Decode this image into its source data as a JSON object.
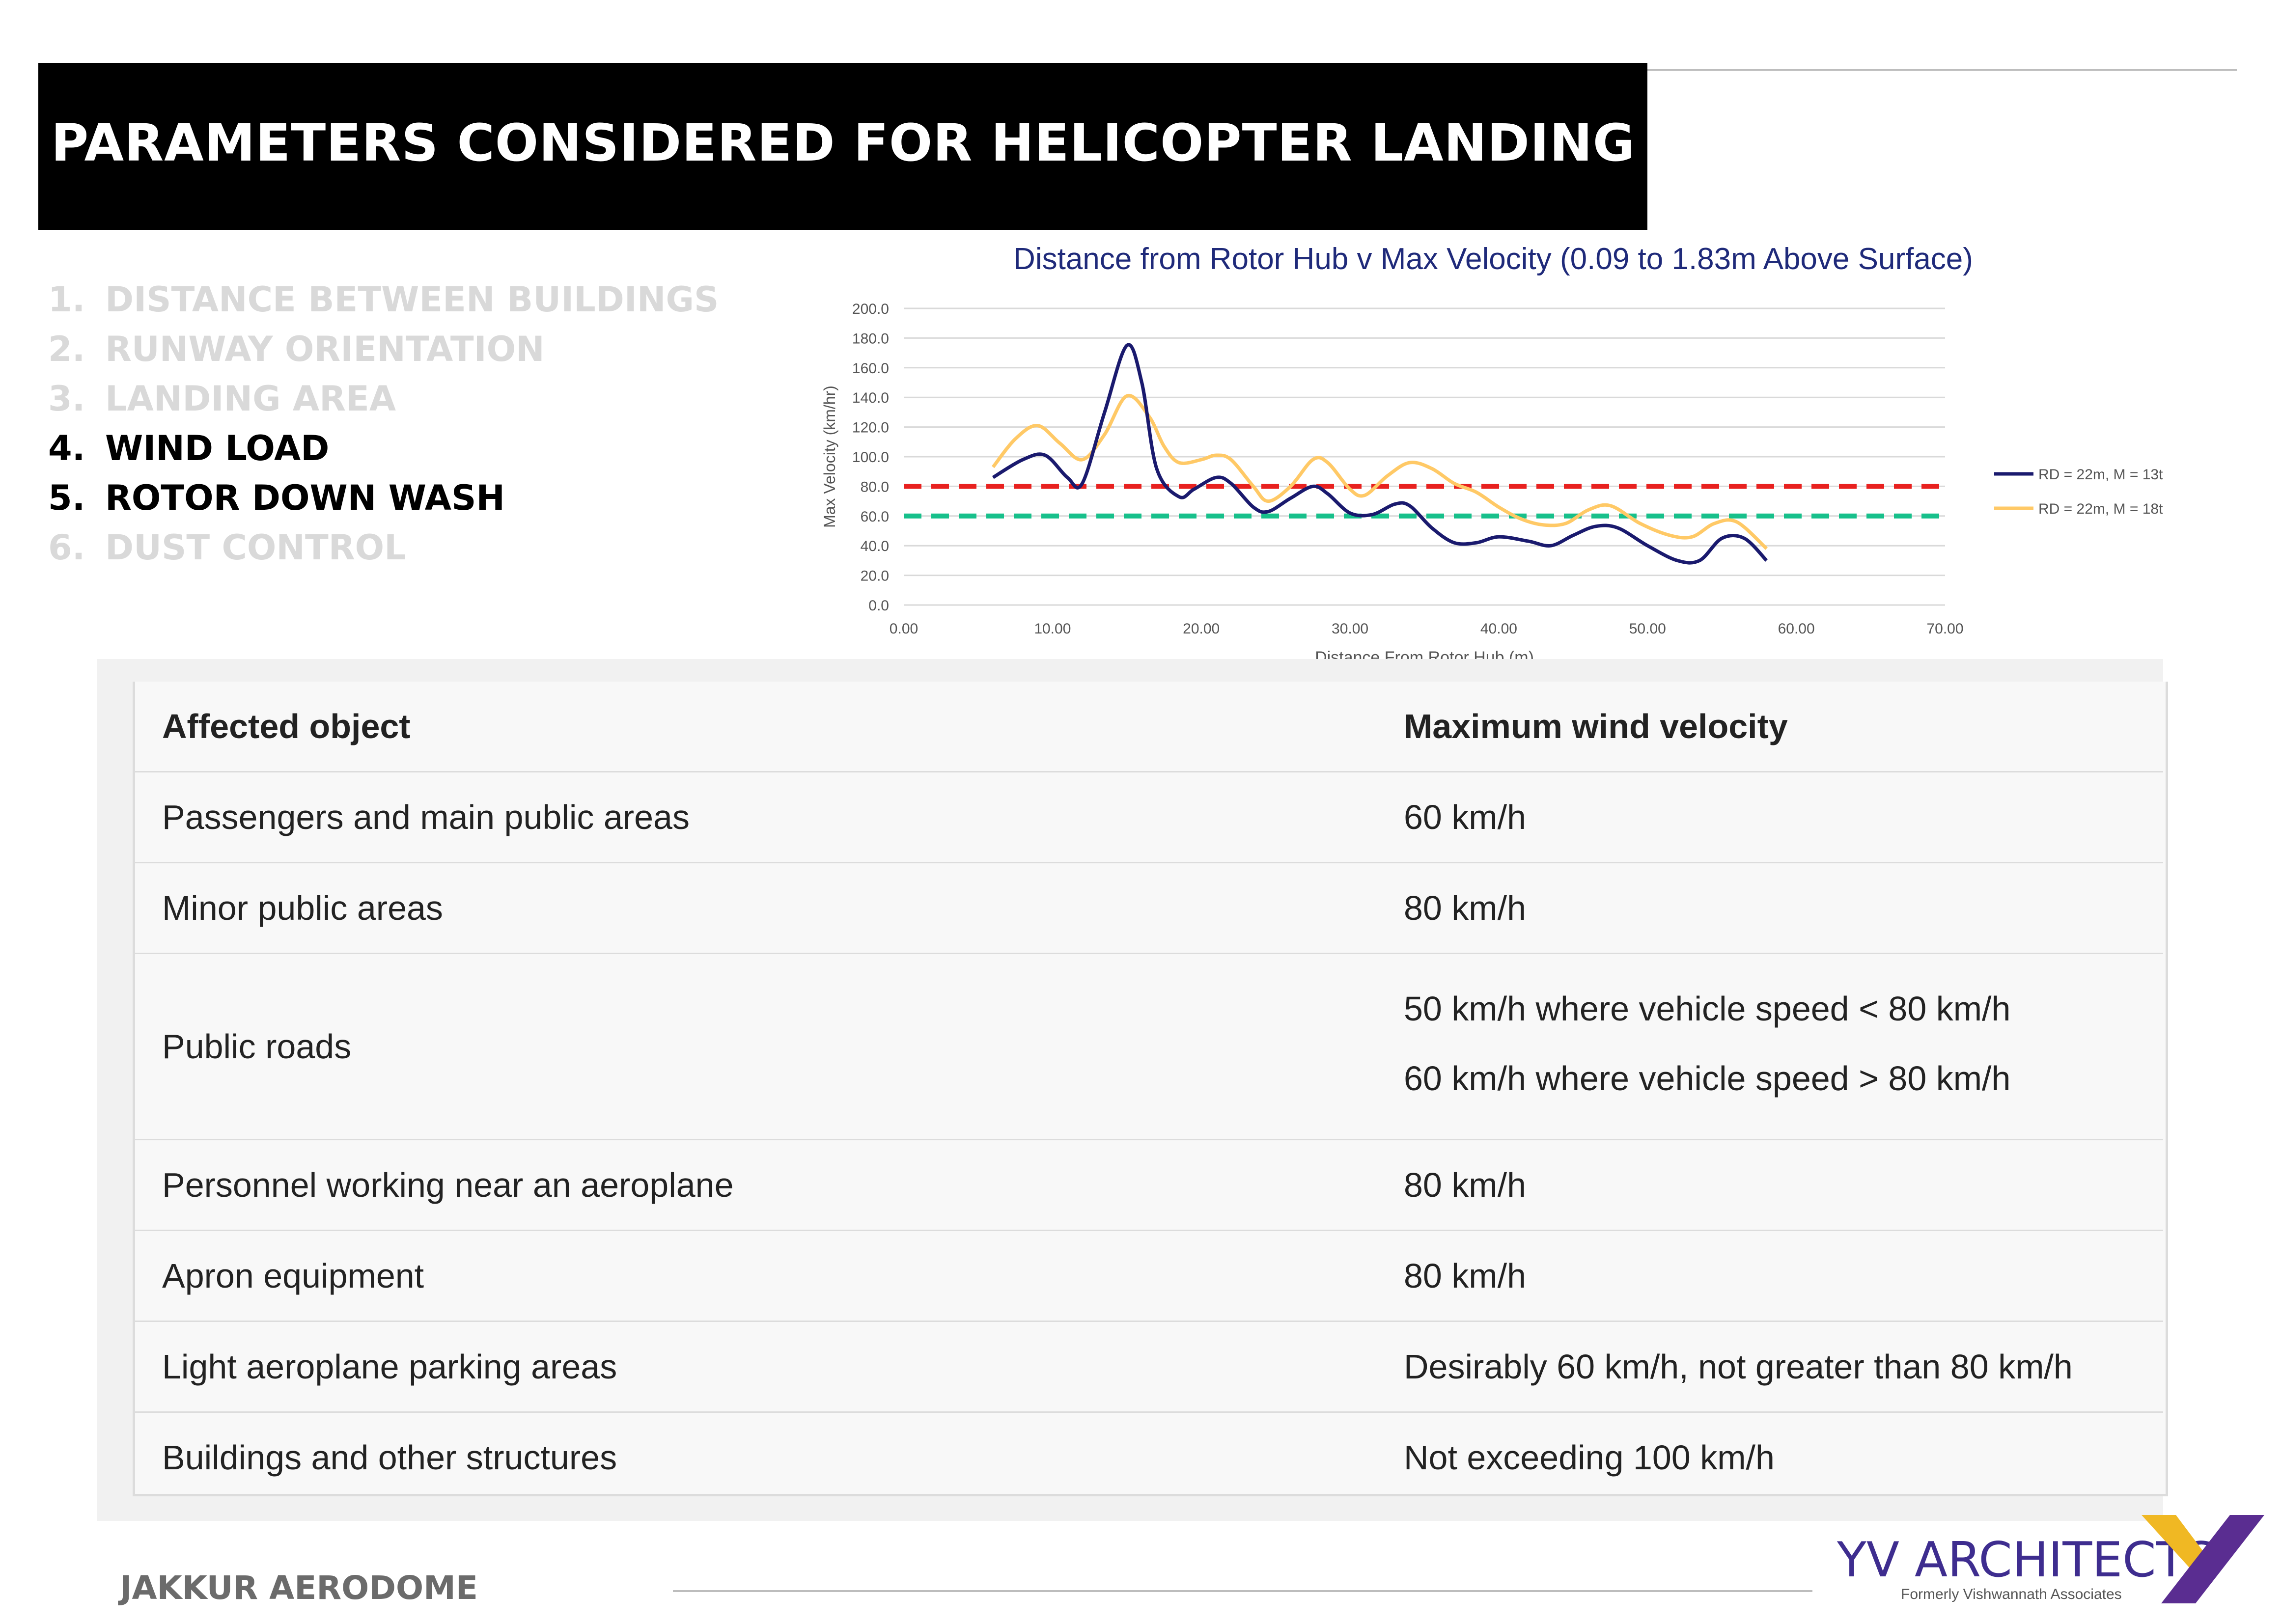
{
  "page": {
    "title": "PARAMETERS CONSIDERED FOR HELICOPTER LANDING",
    "footer": "JAKKUR AERODOME"
  },
  "menu": {
    "items": [
      {
        "num": "1.",
        "label": "DISTANCE BETWEEN BUILDINGS",
        "active": false
      },
      {
        "num": "2.",
        "label": "RUNWAY ORIENTATION",
        "active": false
      },
      {
        "num": "3.",
        "label": "LANDING AREA",
        "active": false
      },
      {
        "num": "4.",
        "label": "WIND LOAD",
        "active": true
      },
      {
        "num": "5.",
        "label": "ROTOR DOWN WASH",
        "active": true
      },
      {
        "num": "6.",
        "label": "DUST CONTROL",
        "active": false
      }
    ]
  },
  "chart_data": {
    "type": "line",
    "title": "Distance from Rotor Hub v Max Velocity (0.09 to 1.83m Above Surface)",
    "xlabel": "Distance From Rotor Hub (m)",
    "ylabel": "Max Velocity (km/hr)",
    "xlim": [
      0,
      70
    ],
    "ylim": [
      0,
      200
    ],
    "x_ticks": [
      "0.00",
      "10.00",
      "20.00",
      "30.00",
      "40.00",
      "50.00",
      "60.00",
      "70.00"
    ],
    "y_ticks": [
      "0.0",
      "20.0",
      "40.0",
      "60.0",
      "80.0",
      "100.0",
      "120.0",
      "140.0",
      "160.0",
      "180.0",
      "200.0"
    ],
    "grid": true,
    "legend": "right",
    "series": [
      {
        "name": "RD = 22m, M = 13t",
        "color": "#1a1a6e",
        "x": [
          6,
          8,
          9.5,
          11,
          12,
          13.5,
          15,
          16,
          17,
          18.5,
          19.5,
          21,
          22,
          23.5,
          24.5,
          26,
          27.5,
          28.5,
          30,
          31.5,
          33,
          34,
          35.5,
          37,
          38.5,
          40,
          42,
          43.5,
          45,
          46.5,
          48,
          50,
          52,
          53.5,
          55,
          56.5,
          58
        ],
        "y": [
          86,
          98,
          101,
          86,
          82,
          130,
          175,
          150,
          92,
          73,
          78,
          86,
          82,
          66,
          63,
          72,
          80,
          75,
          62,
          61,
          68,
          67,
          52,
          42,
          42,
          46,
          43,
          40,
          47,
          53,
          52,
          40,
          30,
          30,
          45,
          45,
          30
        ]
      },
      {
        "name": "RD = 22m, M = 18t",
        "color": "#ffc966",
        "x": [
          6,
          7.5,
          9,
          10.5,
          12,
          13.5,
          15,
          16.5,
          17.5,
          18.5,
          20,
          21,
          22,
          23.5,
          24.5,
          26,
          27.5,
          28.5,
          30,
          31,
          32.5,
          34,
          35.5,
          37,
          38.5,
          40,
          41.5,
          43,
          44.5,
          46,
          47.5,
          49.5,
          51.5,
          53,
          54.5,
          56,
          58
        ],
        "y": [
          93,
          112,
          121,
          109,
          98,
          115,
          141,
          127,
          107,
          96,
          98,
          101,
          98,
          80,
          70,
          80,
          98,
          96,
          78,
          74,
          87,
          96,
          92,
          82,
          76,
          66,
          58,
          54,
          55,
          64,
          67,
          55,
          47,
          46,
          55,
          56,
          38
        ]
      }
    ],
    "threshold_lines": [
      {
        "y": 80,
        "color": "#e8211f"
      },
      {
        "y": 60,
        "color": "#17c08b"
      }
    ]
  },
  "table": {
    "headers": [
      "Affected object",
      "Maximum wind velocity"
    ],
    "rows": [
      {
        "object": "Passengers and main public areas",
        "velocity": [
          "60 km/h"
        ]
      },
      {
        "object": "Minor public areas",
        "velocity": [
          "80 km/h"
        ]
      },
      {
        "object": "Public roads",
        "velocity": [
          "50 km/h where vehicle speed < 80 km/h",
          "60 km/h where vehicle speed > 80 km/h"
        ]
      },
      {
        "object": "Personnel working near an aeroplane",
        "velocity": [
          "80 km/h"
        ]
      },
      {
        "object": "Apron equipment",
        "velocity": [
          "80 km/h"
        ]
      },
      {
        "object": "Light aeroplane parking areas",
        "velocity": [
          "Desirably 60 km/h, not greater than 80 km/h"
        ]
      },
      {
        "object": "Buildings and other structures",
        "velocity": [
          "Not exceeding 100 km/h"
        ]
      }
    ]
  },
  "logo": {
    "name": "YV ARCHITECTS",
    "tagline": "Formerly Vishwannath Associates",
    "colors": {
      "purple": "#5a2d91",
      "gold": "#f0b823"
    }
  }
}
